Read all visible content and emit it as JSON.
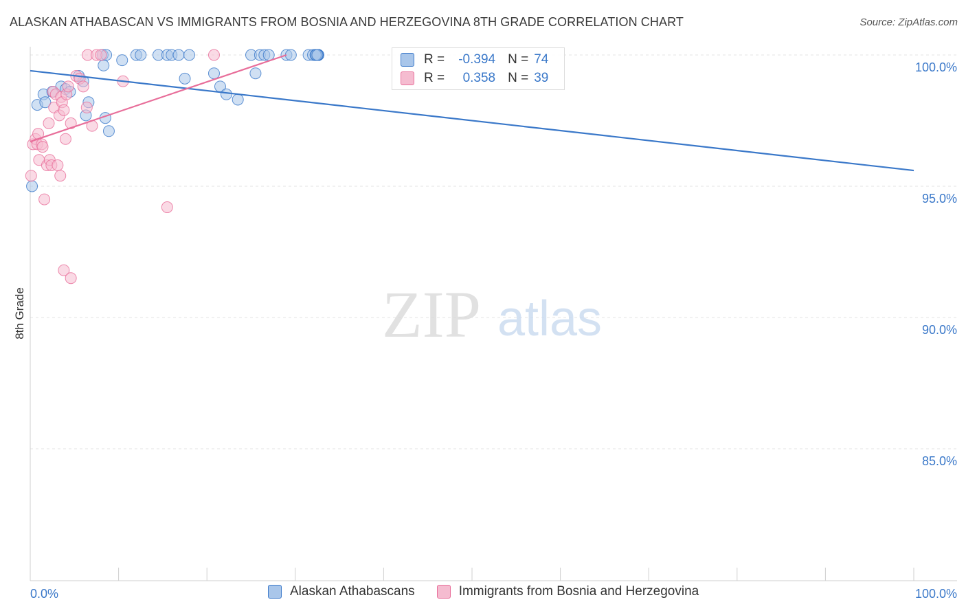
{
  "title": "ALASKAN ATHABASCAN VS IMMIGRANTS FROM BOSNIA AND HERZEGOVINA 8TH GRADE CORRELATION CHART",
  "source": "Source: ZipAtlas.com",
  "watermark": {
    "zip": "ZIP",
    "atlas": "atlas"
  },
  "colors": {
    "blue": "#3a78c9",
    "blue_fill": "#a9c6ea",
    "pink": "#e86e9a",
    "pink_fill": "#f5bcd0",
    "grid": "#e3e3e3",
    "axis_label": "#3a78c9"
  },
  "stats": [
    {
      "r_label": "R =",
      "r": "-0.394",
      "n_label": "N =",
      "n": "74"
    },
    {
      "r_label": "R =",
      "r": "0.358",
      "n_label": "N =",
      "n": "39"
    }
  ],
  "legend": [
    {
      "label": "Alaskan Athabascans"
    },
    {
      "label": "Immigrants from Bosnia and Herzegovina"
    }
  ],
  "chart_data": {
    "type": "scatter",
    "xlabel": "",
    "ylabel": "8th Grade",
    "xlim": [
      0,
      100
    ],
    "ylim": [
      80.5,
      100.5
    ],
    "x_tick_labels": [
      {
        "value": 0,
        "label": "0.0%"
      },
      {
        "value": 100,
        "label": "100.0%"
      }
    ],
    "y_ticks": [
      {
        "value": 100,
        "label": "100.0%"
      },
      {
        "value": 95,
        "label": "95.0%"
      },
      {
        "value": 90,
        "label": "90.0%"
      },
      {
        "value": 85,
        "label": "85.0%"
      }
    ],
    "grid": true,
    "legend_position": "bottom",
    "series": [
      {
        "name": "Alaskan Athabascans",
        "color": "#3a78c9",
        "trend": {
          "x": [
            0,
            100
          ],
          "y": [
            99.4,
            95.6
          ]
        },
        "points": [
          [
            0.2,
            95.0
          ],
          [
            0.8,
            98.1
          ],
          [
            1.5,
            98.5
          ],
          [
            1.7,
            98.2
          ],
          [
            2.5,
            98.6
          ],
          [
            3.5,
            98.8
          ],
          [
            4.0,
            98.7
          ],
          [
            4.5,
            98.6
          ],
          [
            5.5,
            99.2
          ],
          [
            6.0,
            99.0
          ],
          [
            6.3,
            97.7
          ],
          [
            6.6,
            98.2
          ],
          [
            8.5,
            97.6
          ],
          [
            8.9,
            97.1
          ],
          [
            8.2,
            100.0
          ],
          [
            8.6,
            100.0
          ],
          [
            8.3,
            99.6
          ],
          [
            10.4,
            99.8
          ],
          [
            12.0,
            100.0
          ],
          [
            12.5,
            100.0
          ],
          [
            14.5,
            100.0
          ],
          [
            15.5,
            100.0
          ],
          [
            16.0,
            100.0
          ],
          [
            16.8,
            100.0
          ],
          [
            18.0,
            100.0
          ],
          [
            17.5,
            99.1
          ],
          [
            20.8,
            99.3
          ],
          [
            21.5,
            98.8
          ],
          [
            22.2,
            98.5
          ],
          [
            23.5,
            98.3
          ],
          [
            25.0,
            100.0
          ],
          [
            26.0,
            100.0
          ],
          [
            26.5,
            100.0
          ],
          [
            27.0,
            100.0
          ],
          [
            29.0,
            100.0
          ],
          [
            29.5,
            100.0
          ],
          [
            31.5,
            100.0
          ],
          [
            32.5,
            100.0
          ],
          [
            25.5,
            99.3
          ],
          [
            32.0,
            100.0
          ],
          [
            32.6,
            100.0
          ],
          [
            32.3,
            100.0
          ],
          [
            32.4,
            100.0
          ],
          [
            32.5,
            100.0
          ],
          [
            32.6,
            100.0
          ],
          [
            32.4,
            100.0
          ],
          [
            32.5,
            100.0
          ],
          [
            32.6,
            100.0
          ],
          [
            32.5,
            100.0
          ],
          [
            32.4,
            100.0
          ],
          [
            32.3,
            100.0
          ],
          [
            32.5,
            100.0
          ],
          [
            32.6,
            100.0
          ],
          [
            32.4,
            100.0
          ],
          [
            32.5,
            100.0
          ],
          [
            32.3,
            100.0
          ],
          [
            32.4,
            100.0
          ],
          [
            32.5,
            100.0
          ],
          [
            32.6,
            100.0
          ],
          [
            32.4,
            100.0
          ],
          [
            32.5,
            100.0
          ],
          [
            32.6,
            100.0
          ],
          [
            32.5,
            100.0
          ],
          [
            32.4,
            100.0
          ],
          [
            32.3,
            100.0
          ],
          [
            32.5,
            100.0
          ],
          [
            32.6,
            100.0
          ],
          [
            32.4,
            100.0
          ],
          [
            32.5,
            100.0
          ],
          [
            32.6,
            100.0
          ],
          [
            32.5,
            100.0
          ],
          [
            32.4,
            100.0
          ],
          [
            32.3,
            100.0
          ],
          [
            32.5,
            100.0
          ]
        ]
      },
      {
        "name": "Immigrants from Bosnia and Herzegovina",
        "color": "#e86e9a",
        "trend": {
          "x": [
            0,
            29
          ],
          "y": [
            96.7,
            100.0
          ]
        },
        "points": [
          [
            0.1,
            95.4
          ],
          [
            0.3,
            96.6
          ],
          [
            0.6,
            96.8
          ],
          [
            0.8,
            96.6
          ],
          [
            0.9,
            97.0
          ],
          [
            1.0,
            96.0
          ],
          [
            1.3,
            96.6
          ],
          [
            1.4,
            96.5
          ],
          [
            1.6,
            94.5
          ],
          [
            1.9,
            95.8
          ],
          [
            2.1,
            97.4
          ],
          [
            2.2,
            96.0
          ],
          [
            2.4,
            95.8
          ],
          [
            2.6,
            98.6
          ],
          [
            2.7,
            98.0
          ],
          [
            2.9,
            98.5
          ],
          [
            3.1,
            95.8
          ],
          [
            3.3,
            97.7
          ],
          [
            3.4,
            95.4
          ],
          [
            3.5,
            98.4
          ],
          [
            3.6,
            98.2
          ],
          [
            3.8,
            97.9
          ],
          [
            4.0,
            96.8
          ],
          [
            4.1,
            98.5
          ],
          [
            4.3,
            98.8
          ],
          [
            4.6,
            97.4
          ],
          [
            5.2,
            99.2
          ],
          [
            5.6,
            99.1
          ],
          [
            6.0,
            98.8
          ],
          [
            6.4,
            98.0
          ],
          [
            7.0,
            97.3
          ],
          [
            3.8,
            91.8
          ],
          [
            4.6,
            91.5
          ],
          [
            6.5,
            100.0
          ],
          [
            7.5,
            100.0
          ],
          [
            8.0,
            100.0
          ],
          [
            10.5,
            99.0
          ],
          [
            15.5,
            94.2
          ],
          [
            20.8,
            100.0
          ]
        ]
      }
    ]
  }
}
